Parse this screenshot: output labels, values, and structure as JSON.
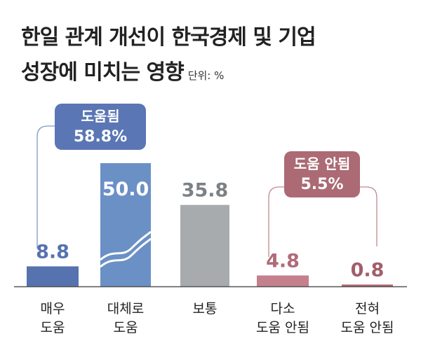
{
  "chart_data": {
    "type": "bar",
    "title_line1": "한일 관계 개선이 한국경제 및 기업",
    "title_line2": "성장에 미치는 영향",
    "unit": "단위: %",
    "categories": [
      [
        "매우",
        "도움"
      ],
      [
        "대체로",
        "도움"
      ],
      [
        "보통"
      ],
      [
        "다소",
        "도움 안됨"
      ],
      [
        "전혀",
        "도움 안됨"
      ]
    ],
    "values": [
      8.8,
      50.0,
      35.8,
      4.8,
      0.8
    ],
    "value_labels": [
      "8.8",
      "50.0",
      "35.8",
      "4.8",
      "0.8"
    ],
    "colors": [
      "#5673b0",
      "#6b90c6",
      "#a8abae",
      "#c4808c",
      "#b0636f"
    ],
    "label_colors": [
      "#5673b0",
      "#ffffff",
      "#7d8084",
      "#b06b78",
      "#a35e69"
    ],
    "broken_axis_bar": 1,
    "groups": [
      {
        "label": "도움됨",
        "value_label": "58.8%",
        "color": "#5a76b4",
        "line_color": "#7f97c8",
        "bars": [
          0,
          1
        ]
      },
      {
        "label": "도움 안됨",
        "value_label": "5.5%",
        "color": "#ab6a74",
        "line_color": "#c08a92",
        "bars": [
          3,
          4
        ]
      }
    ]
  }
}
